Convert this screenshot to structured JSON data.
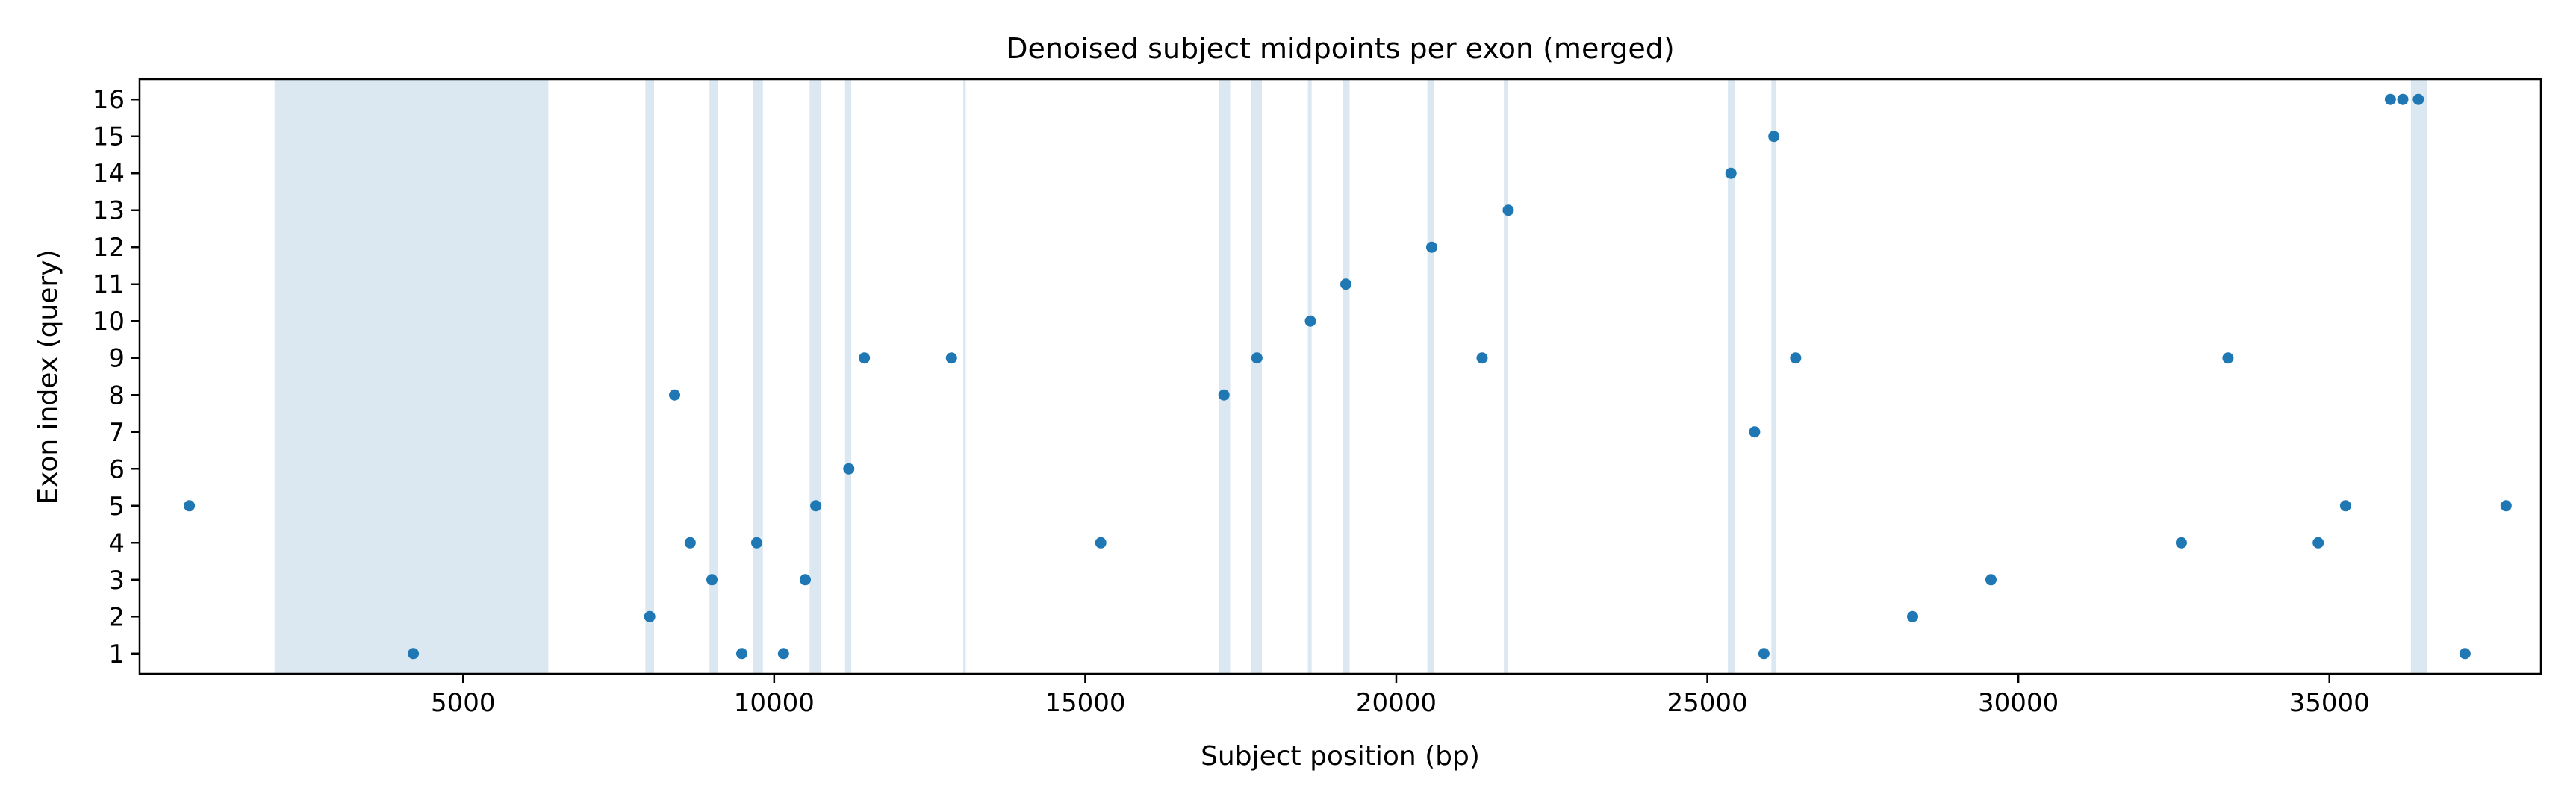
{
  "chart_data": {
    "type": "scatter",
    "title": "Denoised subject midpoints per exon (merged)",
    "xlabel": "Subject position (bp)",
    "ylabel": "Exon index (query)",
    "xlim": [
      -200,
      38400
    ],
    "ylim": [
      0.45,
      16.55
    ],
    "xticks": [
      5000,
      10000,
      15000,
      20000,
      25000,
      30000,
      35000
    ],
    "yticks": [
      1,
      2,
      3,
      4,
      5,
      6,
      7,
      8,
      9,
      10,
      11,
      12,
      13,
      14,
      15,
      16
    ],
    "grid": false,
    "legend": "none",
    "colors": {
      "points": "#1f77b4",
      "bands": "#dbe8f1"
    },
    "highlight_bands": [
      [
        1970,
        6370
      ],
      [
        7930,
        8070
      ],
      [
        8960,
        9100
      ],
      [
        9660,
        9820
      ],
      [
        10570,
        10760
      ],
      [
        11140,
        11240
      ],
      [
        13040,
        13080
      ],
      [
        17150,
        17330
      ],
      [
        17670,
        17840
      ],
      [
        18580,
        18640
      ],
      [
        19140,
        19250
      ],
      [
        20500,
        20610
      ],
      [
        21730,
        21800
      ],
      [
        25330,
        25440
      ],
      [
        26030,
        26100
      ],
      [
        36310,
        36570
      ]
    ],
    "points": [
      {
        "x": 600,
        "y": 5
      },
      {
        "x": 4200,
        "y": 1
      },
      {
        "x": 8000,
        "y": 2
      },
      {
        "x": 8400,
        "y": 8
      },
      {
        "x": 8650,
        "y": 4
      },
      {
        "x": 9000,
        "y": 3
      },
      {
        "x": 9480,
        "y": 1
      },
      {
        "x": 9720,
        "y": 4
      },
      {
        "x": 10150,
        "y": 1
      },
      {
        "x": 10500,
        "y": 3
      },
      {
        "x": 10670,
        "y": 5
      },
      {
        "x": 11200,
        "y": 6
      },
      {
        "x": 11450,
        "y": 9
      },
      {
        "x": 12850,
        "y": 9
      },
      {
        "x": 15250,
        "y": 4
      },
      {
        "x": 17230,
        "y": 8
      },
      {
        "x": 17760,
        "y": 9
      },
      {
        "x": 18620,
        "y": 10
      },
      {
        "x": 19190,
        "y": 11
      },
      {
        "x": 20570,
        "y": 12
      },
      {
        "x": 21380,
        "y": 9
      },
      {
        "x": 21800,
        "y": 13
      },
      {
        "x": 25380,
        "y": 14
      },
      {
        "x": 25760,
        "y": 7
      },
      {
        "x": 25910,
        "y": 1
      },
      {
        "x": 26070,
        "y": 15
      },
      {
        "x": 26420,
        "y": 9
      },
      {
        "x": 28300,
        "y": 2
      },
      {
        "x": 29560,
        "y": 3
      },
      {
        "x": 32620,
        "y": 4
      },
      {
        "x": 33370,
        "y": 9
      },
      {
        "x": 34820,
        "y": 4
      },
      {
        "x": 35260,
        "y": 5
      },
      {
        "x": 35980,
        "y": 16
      },
      {
        "x": 36180,
        "y": 16
      },
      {
        "x": 36430,
        "y": 16
      },
      {
        "x": 37180,
        "y": 1
      },
      {
        "x": 37840,
        "y": 5
      }
    ]
  }
}
